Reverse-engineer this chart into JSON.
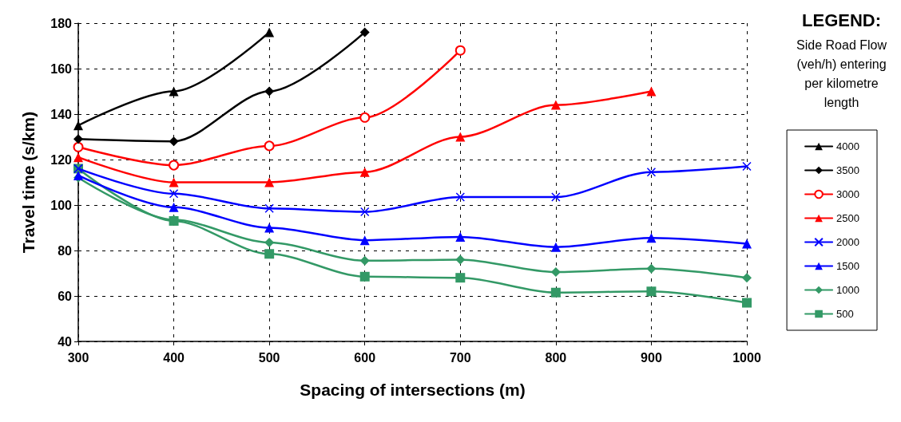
{
  "chart_data": {
    "type": "line",
    "xlabel": "Spacing of intersections (m)",
    "ylabel": "Travel time (s/km)",
    "legend_title": "LEGEND:\nSide Road Flow\n(veh/h) entering\nper kilometre\nlength",
    "x": [
      300,
      400,
      500,
      600,
      700,
      800,
      900,
      1000
    ],
    "xlim": [
      300,
      1000
    ],
    "xticks": [
      300,
      400,
      500,
      600,
      700,
      800,
      900,
      1000
    ],
    "ylim": [
      40,
      180
    ],
    "yticks": [
      40,
      60,
      80,
      100,
      120,
      140,
      160,
      180
    ],
    "grid": true,
    "legend": "right",
    "line_style": "solid",
    "series": [
      {
        "name": "4000",
        "color": "#000000",
        "marker": "triangle",
        "values": [
          135,
          150,
          176,
          null,
          null,
          null,
          null,
          null
        ]
      },
      {
        "name": "3500",
        "color": "#000000",
        "marker": "diamond",
        "values": [
          129,
          128,
          150,
          176,
          null,
          null,
          null,
          null
        ]
      },
      {
        "name": "3000",
        "color": "#ff0000",
        "marker": "circle",
        "values": [
          125.5,
          117.5,
          126,
          138.5,
          168,
          null,
          null,
          null
        ]
      },
      {
        "name": "2500",
        "color": "#ff0000",
        "marker": "triangle",
        "values": [
          121,
          110,
          110,
          114.5,
          130,
          144,
          150,
          null
        ]
      },
      {
        "name": "2000",
        "color": "#0000ff",
        "marker": "cross",
        "values": [
          116,
          105,
          98.5,
          97,
          103.5,
          103.5,
          114.5,
          117
        ]
      },
      {
        "name": "1500",
        "color": "#0000ff",
        "marker": "triangle",
        "values": [
          113,
          99,
          90,
          84.5,
          86,
          81.5,
          85.5,
          83
        ]
      },
      {
        "name": "1000",
        "color": "#339966",
        "marker": "diamond",
        "values": [
          112,
          93.5,
          83.5,
          75.5,
          76,
          70.5,
          72,
          68
        ]
      },
      {
        "name": "500",
        "color": "#339966",
        "marker": "square",
        "values": [
          116,
          93,
          78.5,
          68.5,
          68,
          61.5,
          62,
          57
        ]
      }
    ]
  }
}
